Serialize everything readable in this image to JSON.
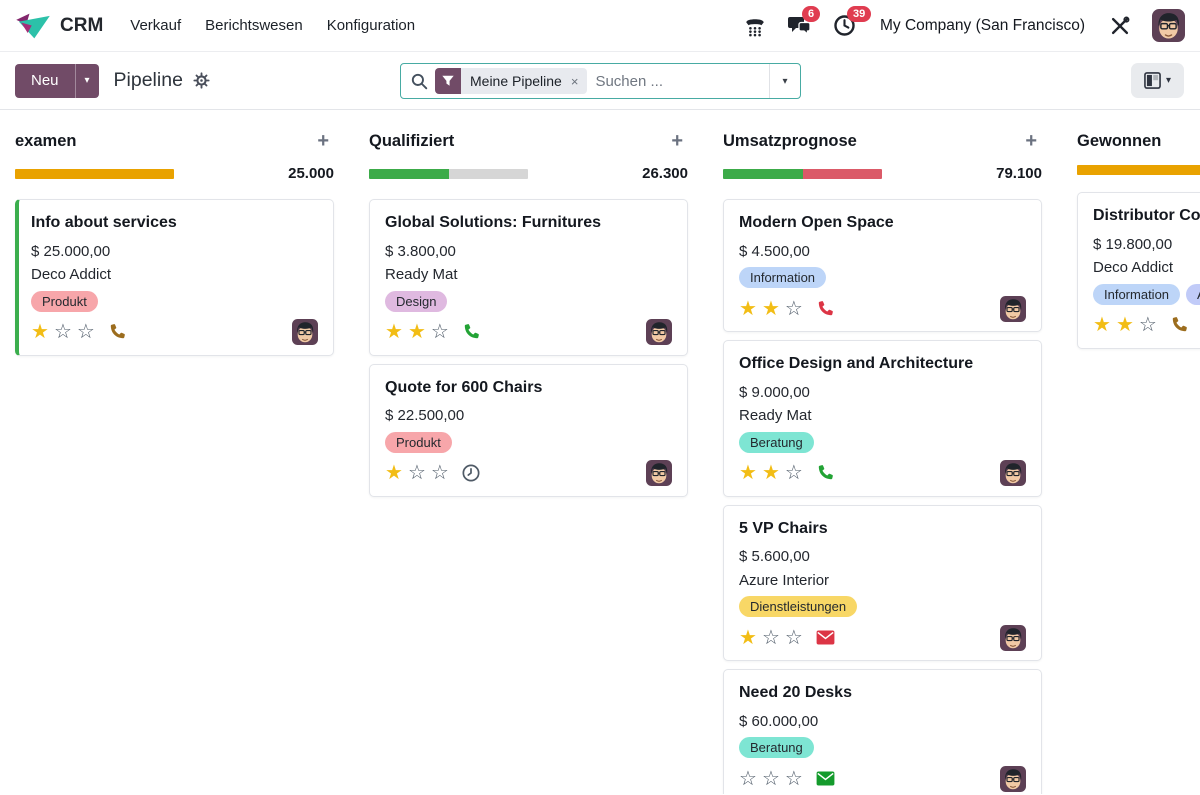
{
  "navbar": {
    "app_name": "CRM",
    "menu": [
      "Verkauf",
      "Berichtswesen",
      "Konfiguration"
    ],
    "messages_badge": "6",
    "activities_badge": "39",
    "company": "My Company (San Francisco)"
  },
  "control_panel": {
    "new_label": "Neu",
    "title": "Pipeline",
    "search_facet": "Meine Pipeline",
    "search_placeholder": "Suchen ..."
  },
  "icons": {
    "caret_down": "▾",
    "plus": "+",
    "close": "×",
    "star_filled": "★",
    "star_empty": "☆",
    "navbar_icons": [
      "phone-dialpad-icon",
      "chat-bubbles-icon",
      "clock-icon",
      "tools-icon"
    ],
    "other_icons": [
      "crm-logo-icon",
      "gear-icon",
      "magnifier-icon",
      "funnel-icon",
      "kanban-view-icon",
      "avatar"
    ]
  },
  "colors": {
    "primary": "#714B67",
    "badge": "#e03c50",
    "search_border": "#47aba3",
    "star_filled": "#f2bd15",
    "star_empty": "#4c5866",
    "bar_orange": "#e9a200",
    "bar_green": "#3cab49",
    "bar_red": "#db5a68",
    "bar_gray": "#d6d6d6"
  },
  "card_star_slots": 3,
  "columns": [
    {
      "name": "examen",
      "total": "25.000",
      "bar": [
        {
          "color": "#e9a200",
          "pct": 100
        }
      ],
      "cards": [
        {
          "title": "Info about services",
          "amount": "$ 25.000,00",
          "partner": "Deco Addict",
          "accent": "#3bae4d",
          "tags": [
            {
              "label": "Produkt",
              "bg": "#f7a6aa"
            }
          ],
          "stars": 1,
          "activity": {
            "type": "phone",
            "color": "#9c6d1e"
          }
        }
      ]
    },
    {
      "name": "Qualifiziert",
      "total": "26.300",
      "bar": [
        {
          "color": "#3cab49",
          "pct": 50
        },
        {
          "color": "#d6d6d6",
          "pct": 50
        }
      ],
      "cards": [
        {
          "title": "Global Solutions: Furnitures",
          "amount": "$ 3.800,00",
          "partner": "Ready Mat",
          "tags": [
            {
              "label": "Design",
              "bg": "#dfb9e0"
            }
          ],
          "stars": 2,
          "activity": {
            "type": "phone",
            "color": "#23a335"
          }
        },
        {
          "title": "Quote for 600 Chairs",
          "amount": "$ 22.500,00",
          "tags": [
            {
              "label": "Produkt",
              "bg": "#f7a6aa"
            }
          ],
          "stars": 1,
          "activity": {
            "type": "clock",
            "color": "#4f5a66"
          }
        }
      ]
    },
    {
      "name": "Umsatzprognose",
      "total": "79.100",
      "bar": [
        {
          "color": "#3cab49",
          "pct": 50
        },
        {
          "color": "#db5a68",
          "pct": 50
        }
      ],
      "cards": [
        {
          "title": "Modern Open Space",
          "amount": "$ 4.500,00",
          "tags": [
            {
              "label": "Information",
              "bg": "#bdd5f8"
            }
          ],
          "stars": 2,
          "activity": {
            "type": "phone",
            "color": "#dc3545"
          }
        },
        {
          "title": "Office Design and Architecture",
          "amount": "$ 9.000,00",
          "partner": "Ready Mat",
          "tags": [
            {
              "label": "Beratung",
              "bg": "#7ee5d3"
            }
          ],
          "stars": 2,
          "activity": {
            "type": "phone",
            "color": "#23a335"
          }
        },
        {
          "title": "5 VP Chairs",
          "amount": "$ 5.600,00",
          "partner": "Azure Interior",
          "tags": [
            {
              "label": "Dienstleistungen",
              "bg": "#f8d766"
            }
          ],
          "stars": 1,
          "activity": {
            "type": "envelope",
            "color": "#dc3545"
          }
        },
        {
          "title": "Need 20 Desks",
          "amount": "$ 60.000,00",
          "tags": [
            {
              "label": "Beratung",
              "bg": "#7ee5d3"
            }
          ],
          "stars": 0,
          "activity": {
            "type": "envelope",
            "color": "#149b2c"
          }
        }
      ]
    },
    {
      "name": "Gewonnen",
      "total": "",
      "bar": [
        {
          "color": "#e9a200",
          "pct": 100
        }
      ],
      "cards": [
        {
          "title": "Distributor Cont",
          "amount": "$ 19.800,00",
          "partner": "Deco Addict",
          "tags": [
            {
              "label": "Information",
              "bg": "#bdd5f8"
            },
            {
              "label": "An",
              "bg": "#c1cbf8"
            }
          ],
          "stars": 2,
          "activity": {
            "type": "phone",
            "color": "#9c6d1e"
          }
        }
      ]
    }
  ]
}
